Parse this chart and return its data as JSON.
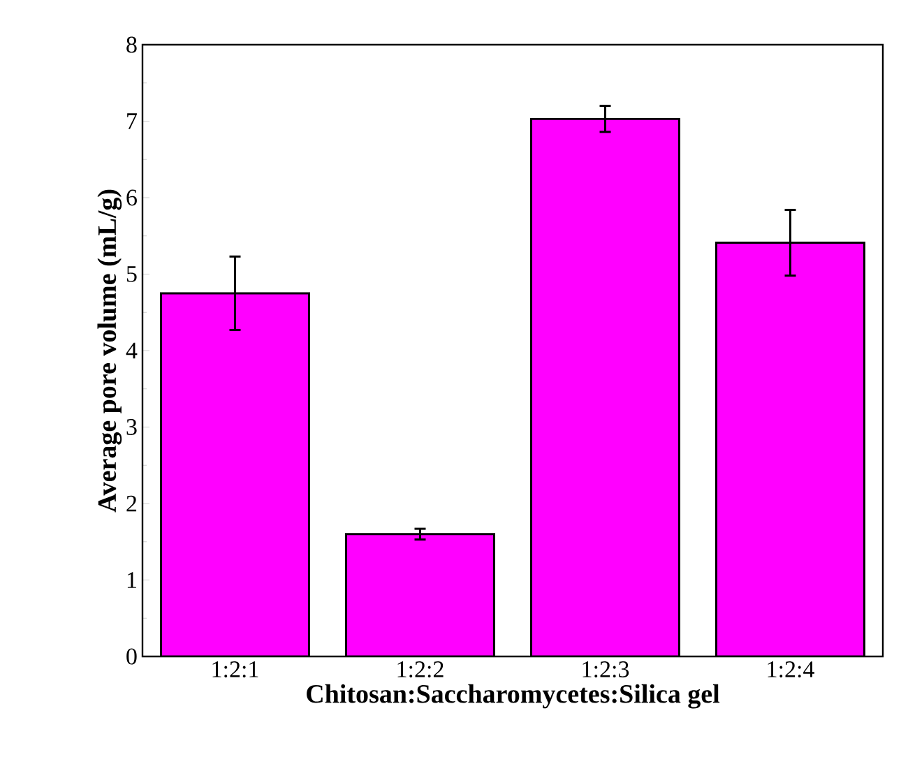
{
  "chart_data": {
    "type": "bar",
    "xlabel": "Chitosan:Saccharomycetes:Silica gel",
    "ylabel": "Average pore volume (mL/g)",
    "categories": [
      "1:2:1",
      "1:2:2",
      "1:2:3",
      "1:2:4"
    ],
    "values": [
      4.75,
      1.6,
      7.03,
      5.41
    ],
    "errors": [
      0.48,
      0.07,
      0.17,
      0.43
    ],
    "color": "#ff00ff",
    "ylim": [
      0,
      8
    ],
    "yticks": [
      0,
      1,
      2,
      3,
      4,
      5,
      6,
      7,
      8
    ],
    "grid": false
  }
}
